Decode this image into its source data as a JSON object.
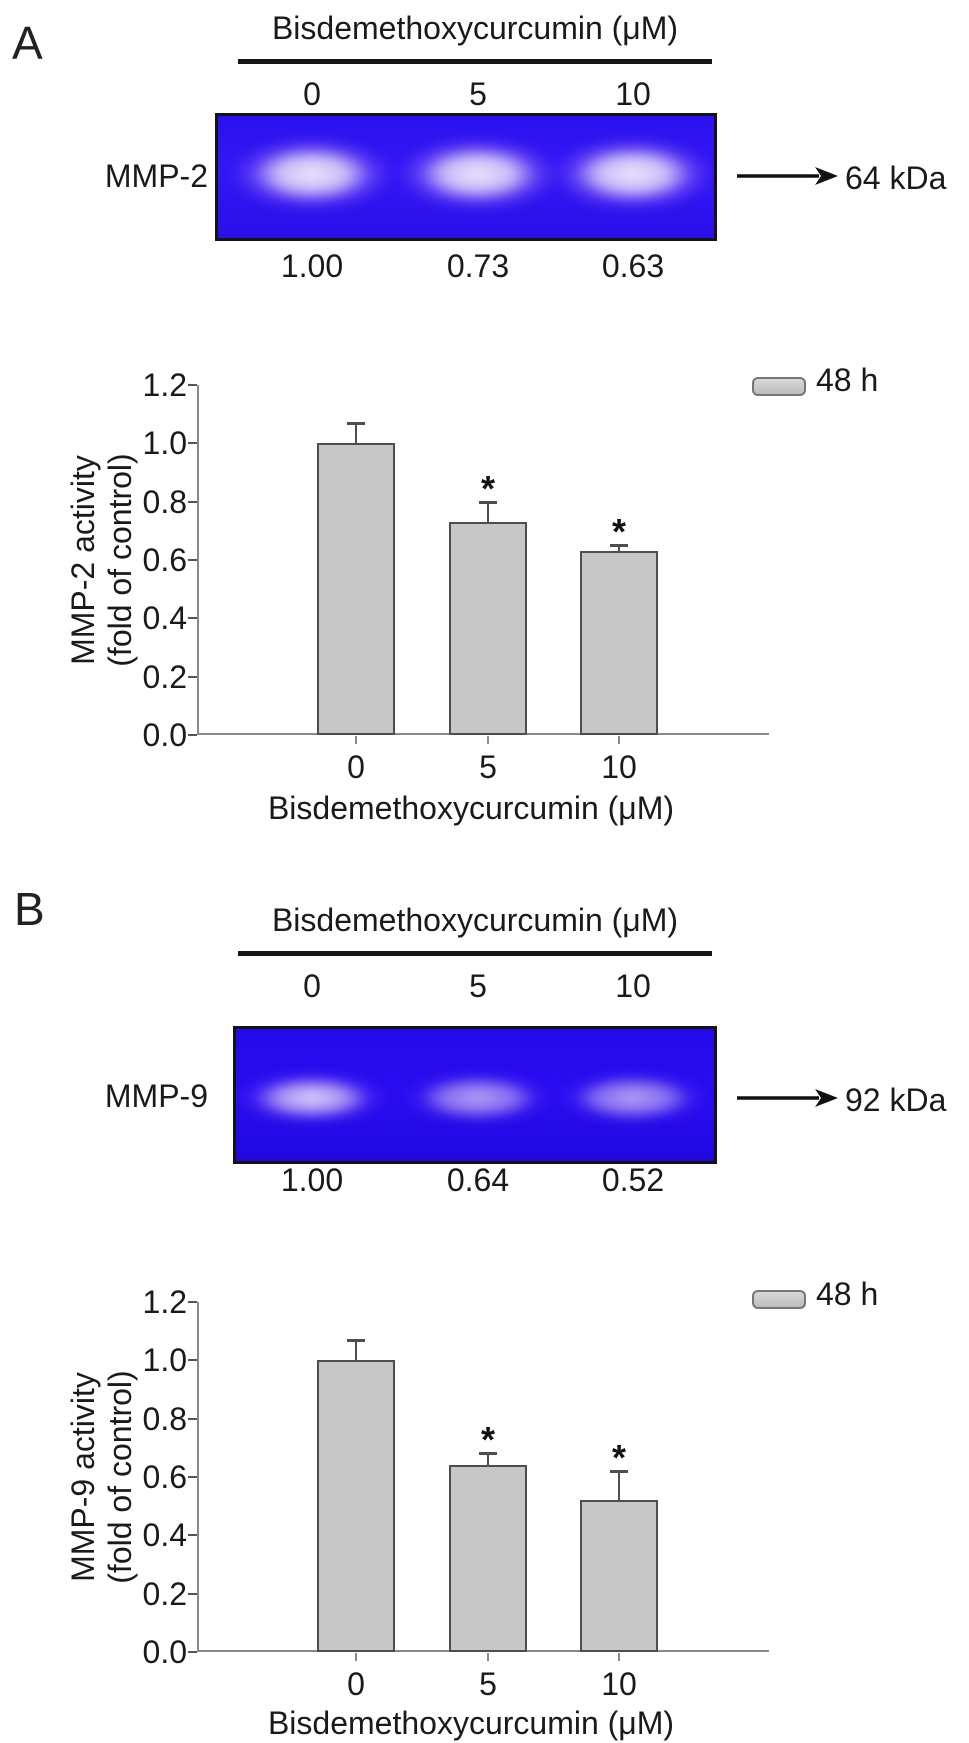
{
  "figure": {
    "panel_a": {
      "label": "A",
      "gel": {
        "treatment": "Bisdemethoxycurcumin (μM)",
        "doses": [
          "0",
          "5",
          "10"
        ],
        "protein": "MMP-2",
        "molecular_weight": "64 kDa",
        "band_densities": [
          "1.00",
          "0.73",
          "0.63"
        ]
      }
    },
    "panel_b": {
      "label": "B",
      "gel": {
        "treatment": "Bisdemethoxycurcumin (μM)",
        "doses": [
          "0",
          "5",
          "10"
        ],
        "protein": "MMP-9",
        "molecular_weight": "92 kDa",
        "band_densities": [
          "1.00",
          "0.64",
          "0.52"
        ]
      }
    }
  },
  "chart_data": [
    {
      "type": "bar",
      "panel": "A",
      "categories": [
        "0",
        "5",
        "10"
      ],
      "series": [
        {
          "name": "48 h",
          "values": [
            1.0,
            0.73,
            0.63
          ],
          "errors": [
            0.07,
            0.07,
            0.02
          ],
          "significance": [
            "",
            "*",
            "*"
          ]
        }
      ],
      "xlabel": "Bisdemethoxycurcumin (μM)",
      "ylabel_lines": [
        "MMP-2 activity",
        "(fold of control)"
      ],
      "ylim": [
        0,
        1.2
      ],
      "ytick_labels": [
        "0.0",
        "0.2",
        "0.4",
        "0.6",
        "0.8",
        "1.0",
        "1.2"
      ],
      "legend": {
        "label": "48 h",
        "position": "top-right",
        "swatch_color": "#c7c7c7"
      },
      "bar_color": "#c7c7c7",
      "grid": false
    },
    {
      "type": "bar",
      "panel": "B",
      "categories": [
        "0",
        "5",
        "10"
      ],
      "series": [
        {
          "name": "48 h",
          "values": [
            1.0,
            0.64,
            0.52
          ],
          "errors": [
            0.07,
            0.04,
            0.1
          ],
          "significance": [
            "",
            "*",
            "*"
          ]
        }
      ],
      "xlabel": "Bisdemethoxycurcumin (μM)",
      "ylabel_lines": [
        "MMP-9 activity",
        "(fold of control)"
      ],
      "ylim": [
        0,
        1.2
      ],
      "ytick_labels": [
        "0.0",
        "0.2",
        "0.4",
        "0.6",
        "0.8",
        "1.0",
        "1.2"
      ],
      "legend": {
        "label": "48 h",
        "position": "top-right",
        "swatch_color": "#c7c7c7"
      },
      "bar_color": "#c7c7c7",
      "grid": false
    }
  ],
  "colors": {
    "gel_a_background": "#2f13f1",
    "gel_b_background": "#2409ea",
    "bar_fill": "#c7c7c7",
    "text": "#1a1a1a"
  }
}
